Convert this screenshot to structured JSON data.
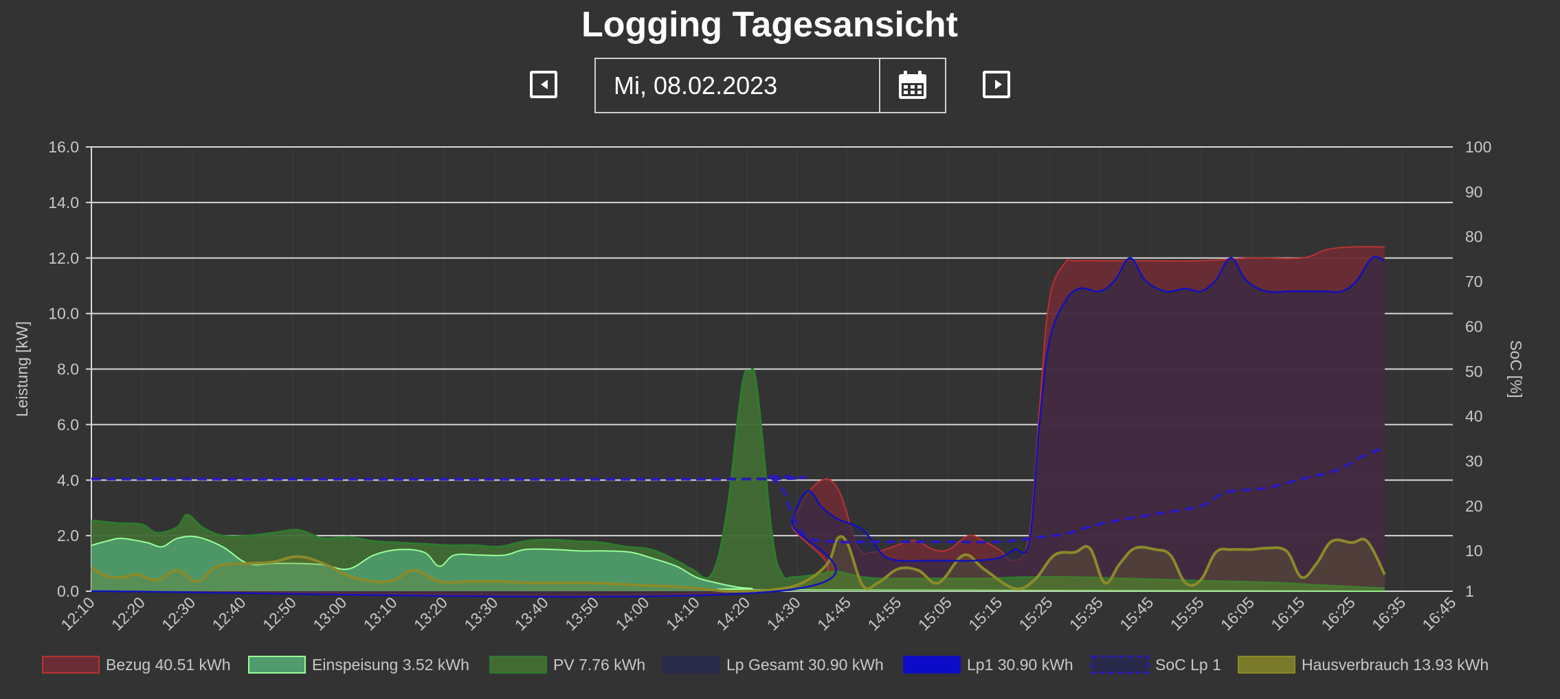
{
  "header": {
    "title": "Logging Tagesansicht",
    "date_value": "Mi, 08.02.2023"
  },
  "icons": {
    "prev": "caret-left-square-icon",
    "next": "caret-right-square-icon",
    "calendar": "calendar-icon"
  },
  "chart_data": {
    "type": "area",
    "x_labels": [
      "12:10",
      "12:20",
      "12:30",
      "12:40",
      "12:50",
      "13:00",
      "13:10",
      "13:20",
      "13:30",
      "13:40",
      "13:50",
      "14:00",
      "14:10",
      "14:20",
      "14:30",
      "14:45",
      "14:55",
      "15:05",
      "15:15",
      "15:25",
      "15:35",
      "15:45",
      "15:55",
      "16:05",
      "16:15",
      "16:25",
      "16:35",
      "16:45"
    ],
    "ylabel_left": "Leistung [kW]",
    "ylabel_right": "SoC [%]",
    "ylim_left": [
      0,
      16
    ],
    "ylim_right": [
      1,
      100
    ],
    "y_ticks_left": [
      "0.0",
      "2.0",
      "4.0",
      "6.0",
      "8.0",
      "10.0",
      "12.0",
      "14.0",
      "16.0"
    ],
    "y_ticks_right": [
      "1",
      "10",
      "20",
      "30",
      "40",
      "50",
      "60",
      "70",
      "80",
      "90",
      "100"
    ],
    "legend_position": "bottom",
    "series": [
      {
        "name": "Bezug",
        "legend": "Bezug 40.51 kWh",
        "axis": "left",
        "color": "#b83232",
        "fill": "#6b2c36",
        "points": [
          [
            0,
            0.05
          ],
          [
            26.8,
            0.05
          ],
          [
            27.8,
            2.5
          ],
          [
            28.8,
            3.9
          ],
          [
            29.6,
            3.7
          ],
          [
            30.4,
            1.6
          ],
          [
            31,
            1.4
          ],
          [
            31.8,
            1.6
          ],
          [
            32.4,
            1.8
          ],
          [
            32.8,
            1.8
          ],
          [
            33.4,
            1.5
          ],
          [
            34,
            1.5
          ],
          [
            34.8,
            2.0
          ],
          [
            35.4,
            1.8
          ],
          [
            36,
            1.5
          ],
          [
            36.6,
            1.1
          ],
          [
            37.2,
            2.0
          ],
          [
            37.6,
            6.5
          ],
          [
            38,
            10.5
          ],
          [
            38.6,
            11.8
          ],
          [
            39,
            11.9
          ],
          [
            40.4,
            11.9
          ],
          [
            42,
            11.9
          ],
          [
            44,
            11.9
          ],
          [
            46,
            12.0
          ],
          [
            48,
            12.0
          ],
          [
            49,
            12.3
          ],
          [
            50,
            12.4
          ],
          [
            51.3,
            12.4
          ]
        ]
      },
      {
        "name": "Einspeisung",
        "legend": "Einspeisung 3.52 kWh",
        "axis": "left",
        "color": "#99ff99",
        "fill": "#4f9b6b",
        "points": [
          [
            0,
            1.65
          ],
          [
            0.6,
            1.8
          ],
          [
            1.2,
            1.9
          ],
          [
            2.2,
            1.75
          ],
          [
            2.8,
            1.6
          ],
          [
            3.4,
            1.9
          ],
          [
            4.2,
            1.95
          ],
          [
            5.2,
            1.6
          ],
          [
            6.2,
            1.0
          ],
          [
            7.2,
            1.0
          ],
          [
            8.2,
            1.0
          ],
          [
            9.2,
            0.95
          ],
          [
            10.2,
            0.8
          ],
          [
            11.2,
            1.3
          ],
          [
            12.2,
            1.5
          ],
          [
            13.2,
            1.4
          ],
          [
            13.8,
            0.9
          ],
          [
            14.4,
            1.3
          ],
          [
            15.4,
            1.3
          ],
          [
            16.4,
            1.3
          ],
          [
            17.2,
            1.5
          ],
          [
            18.4,
            1.5
          ],
          [
            19.4,
            1.45
          ],
          [
            20.4,
            1.45
          ],
          [
            21.4,
            1.4
          ],
          [
            22.2,
            1.2
          ],
          [
            23.2,
            0.9
          ],
          [
            24,
            0.5
          ],
          [
            24.8,
            0.3
          ],
          [
            25.6,
            0.15
          ],
          [
            26.2,
            0.1
          ],
          [
            27,
            0.05
          ],
          [
            51.3,
            0.0
          ]
        ]
      },
      {
        "name": "PV",
        "legend": "PV 7.76 kWh",
        "axis": "left",
        "color": "#2f7a2f",
        "fill": "#416b33",
        "points": [
          [
            0,
            2.55
          ],
          [
            1,
            2.45
          ],
          [
            2,
            2.4
          ],
          [
            2.6,
            2.1
          ],
          [
            3.4,
            2.3
          ],
          [
            3.8,
            2.75
          ],
          [
            4.4,
            2.3
          ],
          [
            5.2,
            2.0
          ],
          [
            6.2,
            2.0
          ],
          [
            7.2,
            2.1
          ],
          [
            8.2,
            2.2
          ],
          [
            9.2,
            1.9
          ],
          [
            10.2,
            1.95
          ],
          [
            11.2,
            1.8
          ],
          [
            12.2,
            1.75
          ],
          [
            13.2,
            1.7
          ],
          [
            14.2,
            1.65
          ],
          [
            15.2,
            1.65
          ],
          [
            16.2,
            1.6
          ],
          [
            17.2,
            1.8
          ],
          [
            18.2,
            1.85
          ],
          [
            19.2,
            1.8
          ],
          [
            20.2,
            1.75
          ],
          [
            21.2,
            1.6
          ],
          [
            22.2,
            1.5
          ],
          [
            23.2,
            1.1
          ],
          [
            23.8,
            0.8
          ],
          [
            24.6,
            0.6
          ],
          [
            25.2,
            2.8
          ],
          [
            25.8,
            7.3
          ],
          [
            26.1,
            7.9
          ],
          [
            26.4,
            7.3
          ],
          [
            27,
            2.0
          ],
          [
            27.4,
            0.6
          ],
          [
            27.8,
            0.5
          ],
          [
            28.8,
            0.6
          ],
          [
            29.6,
            0.7
          ],
          [
            30.6,
            0.5
          ],
          [
            31.6,
            0.45
          ],
          [
            32.6,
            0.45
          ],
          [
            33.6,
            0.45
          ],
          [
            34.6,
            0.45
          ],
          [
            35.6,
            0.45
          ],
          [
            37,
            0.5
          ],
          [
            39,
            0.5
          ],
          [
            41,
            0.45
          ],
          [
            43,
            0.4
          ],
          [
            45,
            0.35
          ],
          [
            47,
            0.3
          ],
          [
            49,
            0.2
          ],
          [
            51.3,
            0.1
          ]
        ]
      },
      {
        "name": "Lp Gesamt",
        "legend": "Lp Gesamt 30.90 kWh",
        "axis": "left",
        "color": "#2a2a4a",
        "fill": "#2a2a4a",
        "points": [
          [
            0,
            0.0
          ],
          [
            27.2,
            0.0
          ],
          [
            27.8,
            2.5
          ],
          [
            28.4,
            3.6
          ],
          [
            29,
            3.0
          ],
          [
            29.6,
            2.6
          ],
          [
            30.2,
            2.4
          ],
          [
            30.6,
            2.2
          ],
          [
            31,
            1.8
          ],
          [
            31.4,
            1.3
          ],
          [
            32,
            1.1
          ],
          [
            33,
            1.1
          ],
          [
            34,
            1.1
          ],
          [
            35,
            1.1
          ],
          [
            36,
            1.2
          ],
          [
            36.6,
            1.5
          ],
          [
            37.2,
            1.8
          ],
          [
            37.6,
            6.0
          ],
          [
            38,
            9.0
          ],
          [
            38.6,
            10.4
          ],
          [
            39.2,
            10.9
          ],
          [
            40,
            10.8
          ],
          [
            40.6,
            11.2
          ],
          [
            41.2,
            12.0
          ],
          [
            41.8,
            11.2
          ],
          [
            42.6,
            10.8
          ],
          [
            43.4,
            10.9
          ],
          [
            44,
            10.8
          ],
          [
            44.6,
            11.2
          ],
          [
            45.2,
            12.0
          ],
          [
            45.8,
            11.2
          ],
          [
            46.6,
            10.8
          ],
          [
            47.6,
            10.8
          ],
          [
            48.8,
            10.8
          ],
          [
            49.6,
            10.8
          ],
          [
            50.2,
            11.2
          ],
          [
            50.8,
            12.0
          ],
          [
            51.3,
            11.9
          ]
        ]
      },
      {
        "name": "Lp1",
        "legend": "Lp1 30.90 kWh",
        "axis": "left",
        "color": "#1111bb",
        "fill": "#0c0cc8",
        "points": [
          [
            0,
            0.0
          ],
          [
            27.2,
            0.0
          ],
          [
            27.8,
            2.5
          ],
          [
            28.4,
            3.6
          ],
          [
            29,
            3.0
          ],
          [
            29.6,
            2.6
          ],
          [
            30.2,
            2.4
          ],
          [
            30.6,
            2.2
          ],
          [
            31,
            1.8
          ],
          [
            31.4,
            1.3
          ],
          [
            32,
            1.1
          ],
          [
            33,
            1.1
          ],
          [
            34,
            1.1
          ],
          [
            35,
            1.1
          ],
          [
            36,
            1.2
          ],
          [
            36.6,
            1.5
          ],
          [
            37.2,
            1.8
          ],
          [
            37.6,
            6.0
          ],
          [
            38,
            9.0
          ],
          [
            38.6,
            10.4
          ],
          [
            39.2,
            10.9
          ],
          [
            40,
            10.8
          ],
          [
            40.6,
            11.2
          ],
          [
            41.2,
            12.0
          ],
          [
            41.8,
            11.2
          ],
          [
            42.6,
            10.8
          ],
          [
            43.4,
            10.9
          ],
          [
            44,
            10.8
          ],
          [
            44.6,
            11.2
          ],
          [
            45.2,
            12.0
          ],
          [
            45.8,
            11.2
          ],
          [
            46.6,
            10.8
          ],
          [
            47.6,
            10.8
          ],
          [
            48.8,
            10.8
          ],
          [
            49.6,
            10.8
          ],
          [
            50.2,
            11.2
          ],
          [
            50.8,
            12.0
          ],
          [
            51.3,
            11.9
          ]
        ]
      },
      {
        "name": "SoC Lp 1",
        "legend": "SoC Lp 1",
        "axis": "right",
        "color": "#2a1ab8",
        "dashed": true,
        "points": [
          [
            0,
            26
          ],
          [
            26,
            26
          ],
          [
            26.8,
            26.5
          ],
          [
            27.4,
            24
          ],
          [
            27.8,
            18
          ],
          [
            28.4,
            13
          ],
          [
            29.6,
            12
          ],
          [
            30.6,
            12
          ],
          [
            32,
            12
          ],
          [
            34,
            12
          ],
          [
            36,
            12
          ],
          [
            37.6,
            13
          ],
          [
            38.8,
            14
          ],
          [
            40,
            16
          ],
          [
            42,
            18
          ],
          [
            44,
            20
          ],
          [
            45,
            23
          ],
          [
            46.6,
            24
          ],
          [
            48,
            26
          ],
          [
            49.4,
            28
          ],
          [
            50.4,
            31
          ],
          [
            51.3,
            33
          ]
        ]
      },
      {
        "name": "Hausverbrauch",
        "legend": "Hausverbrauch 13.93 kWh",
        "axis": "left",
        "color": "#8a8a2a",
        "fill": "#7a7a2a",
        "points": [
          [
            0,
            0.85
          ],
          [
            0.6,
            0.55
          ],
          [
            1.2,
            0.5
          ],
          [
            1.8,
            0.6
          ],
          [
            2.6,
            0.4
          ],
          [
            3.4,
            0.75
          ],
          [
            4.2,
            0.35
          ],
          [
            5,
            0.9
          ],
          [
            6.2,
            1.0
          ],
          [
            7.2,
            1.05
          ],
          [
            8.2,
            1.25
          ],
          [
            9.2,
            1.0
          ],
          [
            10.2,
            0.55
          ],
          [
            11.2,
            0.35
          ],
          [
            12,
            0.4
          ],
          [
            12.8,
            0.75
          ],
          [
            13.8,
            0.35
          ],
          [
            15,
            0.35
          ],
          [
            16.2,
            0.35
          ],
          [
            17.4,
            0.3
          ],
          [
            18.6,
            0.3
          ],
          [
            19.8,
            0.3
          ],
          [
            21,
            0.25
          ],
          [
            22.2,
            0.2
          ],
          [
            23.4,
            0.15
          ],
          [
            24.6,
            0.05
          ],
          [
            25.4,
            0.0
          ],
          [
            27,
            0.05
          ],
          [
            28.2,
            0.3
          ],
          [
            29.2,
            1.0
          ],
          [
            29.6,
            1.9
          ],
          [
            30,
            1.7
          ],
          [
            30.6,
            0.2
          ],
          [
            31.2,
            0.3
          ],
          [
            32,
            0.8
          ],
          [
            32.8,
            0.75
          ],
          [
            33.6,
            0.3
          ],
          [
            34.6,
            1.3
          ],
          [
            35.4,
            0.8
          ],
          [
            36.6,
            0.1
          ],
          [
            37.4,
            0.4
          ],
          [
            38.2,
            1.3
          ],
          [
            39,
            1.4
          ],
          [
            39.6,
            1.55
          ],
          [
            40.2,
            0.3
          ],
          [
            40.8,
            1.0
          ],
          [
            41.4,
            1.55
          ],
          [
            42.2,
            1.5
          ],
          [
            42.8,
            1.3
          ],
          [
            43.4,
            0.3
          ],
          [
            44,
            0.4
          ],
          [
            44.6,
            1.4
          ],
          [
            45.2,
            1.5
          ],
          [
            46,
            1.5
          ],
          [
            46.6,
            1.55
          ],
          [
            47.4,
            1.45
          ],
          [
            48,
            0.5
          ],
          [
            48.6,
            1.0
          ],
          [
            49.2,
            1.8
          ],
          [
            50,
            1.75
          ],
          [
            50.6,
            1.8
          ],
          [
            51.3,
            0.6
          ]
        ]
      }
    ]
  }
}
